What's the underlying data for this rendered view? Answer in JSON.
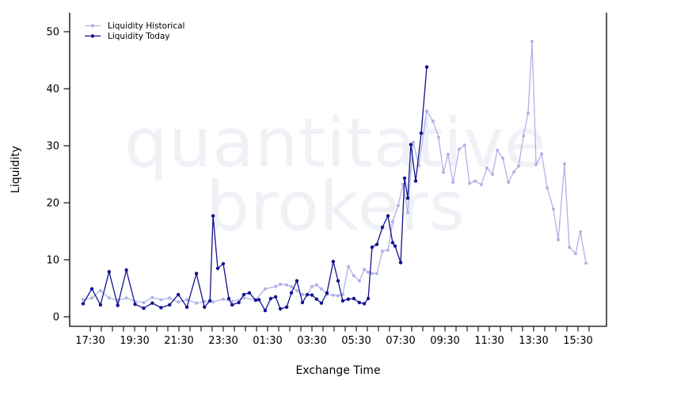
{
  "watermark": {
    "line1": "quantitative",
    "line2": "brokers"
  },
  "chart_data": {
    "type": "line",
    "title": "",
    "xlabel": "Exchange Time",
    "ylabel": "Liquidity",
    "ylim": [
      0,
      50
    ],
    "y_ticks": [
      0,
      10,
      20,
      30,
      40,
      50
    ],
    "x_axis_note": "x stored as hours after 17:30; minor ticks every 30 min, labels every 2 h",
    "x_minor_tick_start": 0,
    "x_minor_tick_end": 22.5,
    "x_minor_tick_step": 0.5,
    "x_tick_labels": [
      "17:30",
      "19:30",
      "21:30",
      "23:30",
      "01:30",
      "03:30",
      "05:30",
      "07:30",
      "09:30",
      "11:30",
      "13:30",
      "15:30"
    ],
    "grid": "off",
    "axis_color": "#2e2e2e",
    "legend": {
      "position": "top-left",
      "entries": [
        {
          "label": "Liquidity Historical",
          "color": "#b1b1e8"
        },
        {
          "label": "Liquidity Today",
          "color": "#12128e"
        }
      ]
    },
    "series": [
      {
        "name": "Liquidity Historical",
        "color": "#b1b1e8",
        "marker_radius": 2,
        "points": [
          [
            -0.32,
            3.0
          ],
          [
            0.07,
            3.3
          ],
          [
            0.46,
            4.6
          ],
          [
            0.85,
            3.3
          ],
          [
            1.24,
            2.9
          ],
          [
            1.63,
            3.3
          ],
          [
            2.02,
            2.7
          ],
          [
            2.41,
            2.5
          ],
          [
            2.8,
            3.4
          ],
          [
            3.19,
            3.0
          ],
          [
            3.58,
            3.3
          ],
          [
            3.97,
            2.6
          ],
          [
            4.36,
            3.0
          ],
          [
            4.79,
            2.4
          ],
          [
            5.15,
            2.7
          ],
          [
            5.54,
            2.6
          ],
          [
            6.0,
            3.1
          ],
          [
            6.4,
            2.7
          ],
          [
            6.93,
            3.3
          ],
          [
            7.46,
            3.0
          ],
          [
            7.89,
            4.9
          ],
          [
            8.36,
            5.3
          ],
          [
            8.57,
            5.7
          ],
          [
            8.86,
            5.6
          ],
          [
            9.07,
            5.3
          ],
          [
            9.32,
            4.6
          ],
          [
            9.57,
            3.9
          ],
          [
            9.79,
            3.8
          ],
          [
            10.0,
            5.3
          ],
          [
            10.21,
            5.6
          ],
          [
            10.43,
            4.9
          ],
          [
            10.68,
            3.9
          ],
          [
            10.96,
            3.8
          ],
          [
            11.18,
            3.7
          ],
          [
            11.39,
            3.9
          ],
          [
            11.64,
            8.8
          ],
          [
            11.89,
            7.2
          ],
          [
            12.14,
            6.3
          ],
          [
            12.36,
            8.3
          ],
          [
            12.54,
            7.8
          ],
          [
            12.71,
            7.6
          ],
          [
            12.93,
            7.6
          ],
          [
            13.18,
            11.5
          ],
          [
            13.43,
            11.7
          ],
          [
            13.64,
            16.7
          ],
          [
            13.89,
            19.5
          ],
          [
            14.11,
            23.2
          ],
          [
            14.32,
            18.3
          ],
          [
            14.57,
            30.6
          ],
          [
            14.82,
            26.5
          ],
          [
            15.18,
            36.1
          ],
          [
            15.46,
            34.3
          ],
          [
            15.71,
            31.5
          ],
          [
            15.93,
            25.3
          ],
          [
            16.14,
            28.5
          ],
          [
            16.36,
            23.6
          ],
          [
            16.64,
            29.4
          ],
          [
            16.89,
            30.1
          ],
          [
            17.11,
            23.4
          ],
          [
            17.36,
            23.8
          ],
          [
            17.64,
            23.2
          ],
          [
            17.89,
            26.1
          ],
          [
            18.14,
            25.0
          ],
          [
            18.36,
            29.2
          ],
          [
            18.61,
            27.8
          ],
          [
            18.86,
            23.6
          ],
          [
            19.11,
            25.4
          ],
          [
            19.32,
            26.4
          ],
          [
            19.54,
            31.7
          ],
          [
            19.75,
            35.7
          ],
          [
            19.93,
            48.3
          ],
          [
            20.11,
            26.7
          ],
          [
            20.36,
            28.6
          ],
          [
            20.61,
            22.6
          ],
          [
            20.89,
            18.9
          ],
          [
            21.11,
            13.5
          ],
          [
            21.39,
            26.8
          ],
          [
            21.61,
            12.2
          ],
          [
            21.89,
            11.1
          ],
          [
            22.11,
            14.9
          ],
          [
            22.36,
            9.4
          ]
        ]
      },
      {
        "name": "Liquidity Today",
        "color": "#12128e",
        "marker_radius": 2.2,
        "points": [
          [
            -0.32,
            2.3
          ],
          [
            0.07,
            4.9
          ],
          [
            0.46,
            2.1
          ],
          [
            0.85,
            7.9
          ],
          [
            1.24,
            2.0
          ],
          [
            1.63,
            8.2
          ],
          [
            2.02,
            2.2
          ],
          [
            2.41,
            1.5
          ],
          [
            2.8,
            2.4
          ],
          [
            3.19,
            1.6
          ],
          [
            3.58,
            2.1
          ],
          [
            3.97,
            3.9
          ],
          [
            4.36,
            1.7
          ],
          [
            4.79,
            7.6
          ],
          [
            5.15,
            1.7
          ],
          [
            5.4,
            2.8
          ],
          [
            5.54,
            17.7
          ],
          [
            5.75,
            8.5
          ],
          [
            6.0,
            9.3
          ],
          [
            6.25,
            3.2
          ],
          [
            6.4,
            2.1
          ],
          [
            6.7,
            2.5
          ],
          [
            6.93,
            3.9
          ],
          [
            7.18,
            4.2
          ],
          [
            7.46,
            2.9
          ],
          [
            7.61,
            3.0
          ],
          [
            7.89,
            1.1
          ],
          [
            8.14,
            3.2
          ],
          [
            8.36,
            3.5
          ],
          [
            8.57,
            1.4
          ],
          [
            8.86,
            1.7
          ],
          [
            9.07,
            4.2
          ],
          [
            9.32,
            6.3
          ],
          [
            9.57,
            2.5
          ],
          [
            9.79,
            3.9
          ],
          [
            10.0,
            3.8
          ],
          [
            10.21,
            3.1
          ],
          [
            10.43,
            2.4
          ],
          [
            10.68,
            4.2
          ],
          [
            10.96,
            9.7
          ],
          [
            11.18,
            6.3
          ],
          [
            11.39,
            2.8
          ],
          [
            11.64,
            3.1
          ],
          [
            11.89,
            3.2
          ],
          [
            12.14,
            2.5
          ],
          [
            12.36,
            2.3
          ],
          [
            12.54,
            3.2
          ],
          [
            12.71,
            12.2
          ],
          [
            12.93,
            12.7
          ],
          [
            13.18,
            15.7
          ],
          [
            13.43,
            17.7
          ],
          [
            13.64,
            13.0
          ],
          [
            13.75,
            12.4
          ],
          [
            14.0,
            9.5
          ],
          [
            14.18,
            24.3
          ],
          [
            14.32,
            20.8
          ],
          [
            14.46,
            30.2
          ],
          [
            14.68,
            23.8
          ],
          [
            14.93,
            32.2
          ],
          [
            15.18,
            43.8
          ]
        ]
      }
    ]
  }
}
